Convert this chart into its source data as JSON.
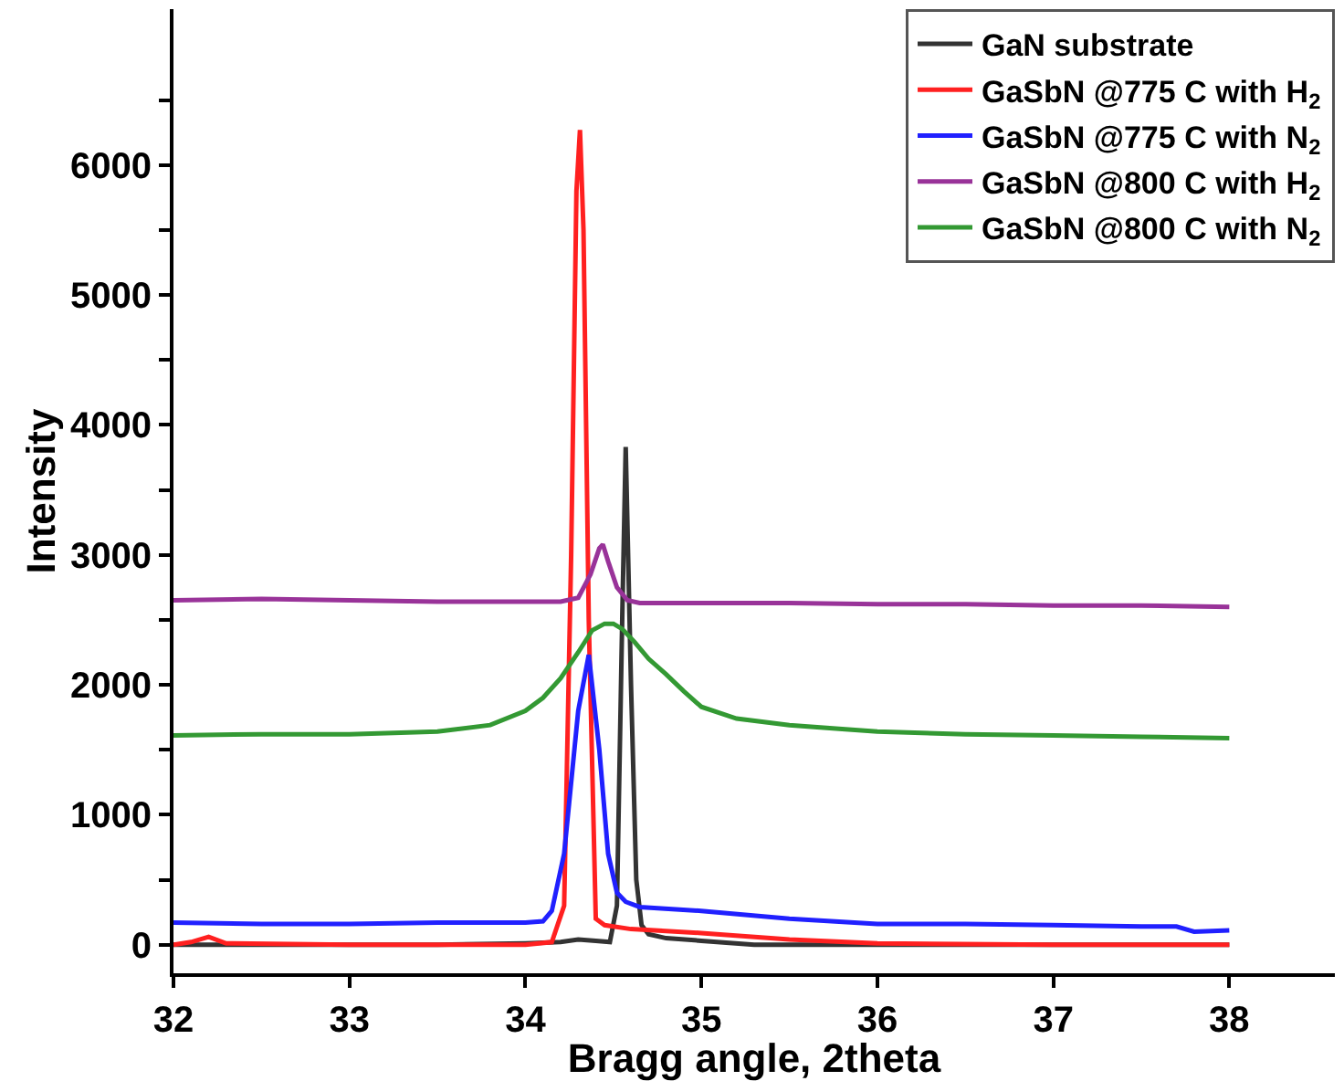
{
  "chart_data": {
    "type": "line",
    "xlabel": "Bragg angle, 2theta",
    "ylabel": "Intensity",
    "xlim": [
      32,
      38.6
    ],
    "xticks": [
      32,
      33,
      34,
      35,
      36,
      37,
      38
    ],
    "ylim": [
      -220,
      7200
    ],
    "yticks": [
      0,
      {
        "value": 500,
        "label": null
      },
      1000,
      {
        "value": 1500,
        "label": null
      },
      2000,
      {
        "value": 2500,
        "label": null
      },
      3000,
      {
        "value": 3500,
        "label": null
      },
      4000,
      {
        "value": 4500,
        "label": null
      },
      5000,
      {
        "value": 5500,
        "label": null
      },
      6000,
      {
        "value": 6500,
        "label": null
      }
    ],
    "legend": "top right",
    "marker": "none",
    "line_style": "solid",
    "series": [
      {
        "name": "GaN substrate",
        "color": "#333333",
        "x": [
          32,
          32.5,
          33,
          33.5,
          34,
          34.2,
          34.3,
          34.4,
          34.48,
          34.52,
          34.55,
          34.57,
          34.6,
          34.63,
          34.66,
          34.7,
          34.8,
          35,
          35.3,
          36,
          37,
          38
        ],
        "values": [
          0,
          0,
          0,
          0,
          10,
          20,
          40,
          30,
          20,
          300,
          2500,
          3830,
          2000,
          500,
          150,
          80,
          50,
          30,
          0,
          0,
          0,
          0
        ]
      },
      {
        "name": "GaSbN @775 C with H$_{2}$",
        "color": "#ff2020",
        "x": [
          32,
          32.1,
          32.2,
          32.3,
          33,
          34,
          34.15,
          34.22,
          34.26,
          34.29,
          34.31,
          34.33,
          34.36,
          34.4,
          34.45,
          34.6,
          35,
          35.5,
          36,
          37,
          38
        ],
        "values": [
          0,
          20,
          60,
          10,
          0,
          0,
          20,
          300,
          3000,
          5800,
          6270,
          5500,
          2500,
          200,
          150,
          120,
          90,
          40,
          10,
          0,
          0
        ]
      },
      {
        "name": "GaSbN @775 C with N$_{2}$",
        "color": "#2020ff",
        "x": [
          32,
          32.5,
          33,
          33.5,
          34,
          34.1,
          34.15,
          34.22,
          34.3,
          34.36,
          34.42,
          34.47,
          34.52,
          34.57,
          34.65,
          35,
          35.5,
          36,
          36.5,
          37,
          37.5,
          37.7,
          37.8,
          38
        ],
        "values": [
          170,
          160,
          160,
          170,
          170,
          180,
          260,
          700,
          1800,
          2230,
          1500,
          700,
          400,
          330,
          290,
          260,
          200,
          160,
          160,
          150,
          140,
          140,
          100,
          110
        ]
      },
      {
        "name": "GaSbN @800 C with H$_{2}$",
        "color": "#993399",
        "x": [
          32,
          32.5,
          33,
          33.5,
          34,
          34.2,
          34.3,
          34.37,
          34.42,
          34.44,
          34.47,
          34.52,
          34.58,
          34.65,
          35,
          35.5,
          36,
          36.5,
          37,
          37.5,
          38
        ],
        "values": [
          2650,
          2660,
          2650,
          2640,
          2640,
          2640,
          2670,
          2850,
          3050,
          3080,
          2950,
          2750,
          2650,
          2630,
          2630,
          2630,
          2620,
          2620,
          2610,
          2610,
          2600
        ]
      },
      {
        "name": "GaSbN @800 C with N$_{2}$",
        "color": "#339933",
        "x": [
          32,
          32.5,
          33,
          33.5,
          33.8,
          34,
          34.1,
          34.2,
          34.3,
          34.38,
          34.45,
          34.5,
          34.55,
          34.62,
          34.7,
          34.8,
          34.9,
          35,
          35.2,
          35.5,
          35.8,
          36,
          36.5,
          37,
          37.5,
          38
        ],
        "values": [
          1610,
          1620,
          1620,
          1640,
          1690,
          1800,
          1900,
          2050,
          2250,
          2420,
          2470,
          2470,
          2430,
          2330,
          2200,
          2080,
          1950,
          1830,
          1740,
          1690,
          1660,
          1640,
          1620,
          1610,
          1600,
          1590
        ]
      }
    ]
  }
}
